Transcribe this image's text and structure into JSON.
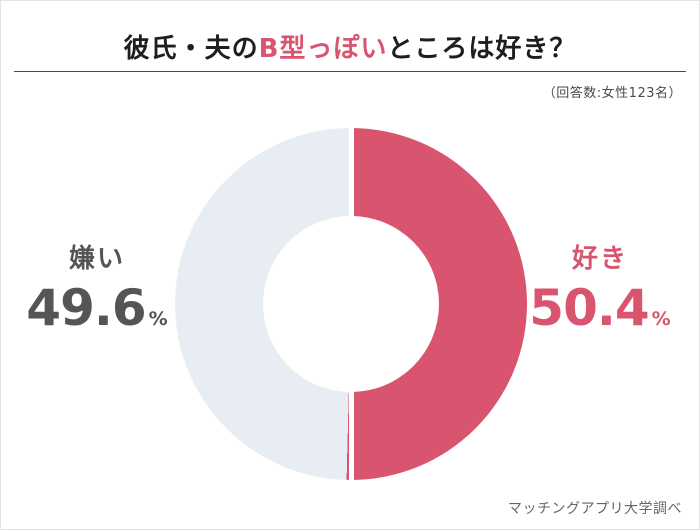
{
  "title": {
    "prefix": "彼氏・夫の",
    "highlight": "B型っぽい",
    "suffix": "ところは好き？"
  },
  "subtitle": "（回答数:女性123名）",
  "source": "マッチングアプリ大学調べ",
  "colors": {
    "accent_pink": "#d9546e",
    "slice_like": "#d9546e",
    "slice_dislike": "#e7edf2",
    "label_dislike": "#555555",
    "title_text": "#1e1e1e"
  },
  "chart_data": {
    "type": "pie",
    "donut": true,
    "title": "彼氏・夫のB型っぽいところは好き？",
    "subtitle": "（回答数:女性123名）",
    "labels": [
      "好き",
      "嫌い"
    ],
    "values": [
      50.4,
      49.6
    ],
    "colors": [
      "#d9546e",
      "#e7edf2"
    ],
    "start_angle_deg": 0,
    "direction": "clockwise",
    "legend_position": "sides",
    "source": "マッチングアプリ大学調べ"
  },
  "labels": {
    "like": {
      "name": "好き",
      "value": "50.4",
      "unit": "%"
    },
    "dislike": {
      "name": "嫌い",
      "value": "49.6",
      "unit": "%"
    }
  }
}
